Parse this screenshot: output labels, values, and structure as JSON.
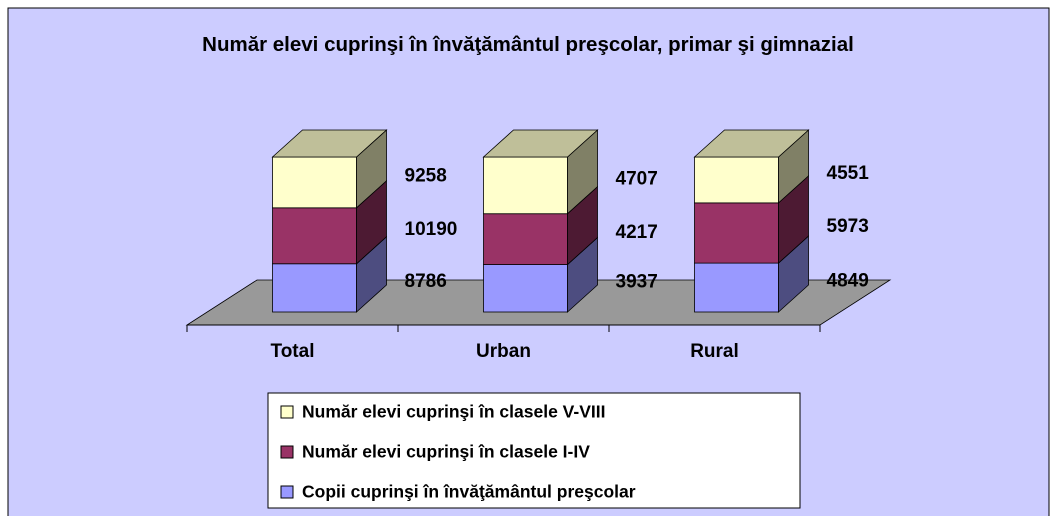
{
  "chart_data": {
    "type": "bar",
    "stacked": "percent",
    "legend": "bottom",
    "title": "Număr elevi cuprinşi în învăţământul preşcolar, primar şi gimnazial",
    "categories": [
      "Total",
      "Urban",
      "Rural"
    ],
    "series": [
      {
        "name": "Copii cuprinşi în învăţământul preşcolar",
        "color": "#9999ff",
        "values": [
          8786,
          3937,
          4849
        ]
      },
      {
        "name": "Număr elevi cuprinşi în clasele I-IV",
        "color": "#993366",
        "values": [
          10190,
          4217,
          5973
        ]
      },
      {
        "name": "Număr elevi cuprinşi în clasele V-VIII",
        "color": "#ffffcc",
        "values": [
          9258,
          4707,
          4551
        ]
      }
    ]
  }
}
